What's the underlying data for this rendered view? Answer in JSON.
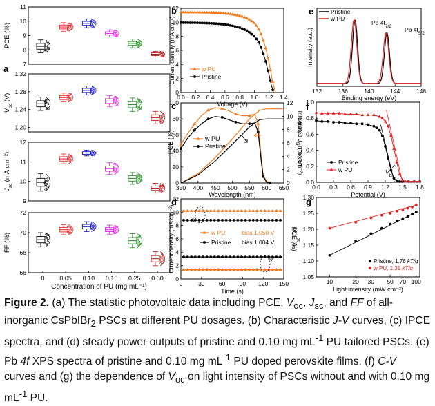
{
  "colors": {
    "black": "#000000",
    "red": "#e02020",
    "blue": "#1515d0",
    "magenta": "#e020e0",
    "green": "#1a8c1a",
    "darkred": "#b01515",
    "orange": "#f07b1e",
    "gray": "#777777"
  },
  "caption": {
    "fig": "Figure 2.",
    "a": "(a) The statistic photovoltaic data including PCE,",
    "voc": "V",
    "voc_sub": "oc",
    "comma1": ",",
    "jsc": "J",
    "jsc_sub": "sc",
    "and": ", and",
    "ff": "FF",
    "a2": "of all-inorganic CsPbIBr",
    "br_sub": "2",
    "a3": "PSCs at different PU dosages. (b) Characteristic",
    "jv": "J-V",
    "b2": "curves, (c) IPCE spectra, and (d) steady power outputs of pristine and 0.10 mg mL",
    "sup1": "-1",
    "b3": "PU tailored PSCs. (e) Pb",
    "pb4f": "4f",
    "b4": "XPS spectra of pristine and 0.10 mg mL",
    "sup2": "-1",
    "b5": "PU doped perovskite films. (f)",
    "cv": "C-V",
    "b6": "curves and (g) the dependence of",
    "voc2": "V",
    "voc2_sub": "oc",
    "b7": "on light intensity of PSCs without and with 0.10 mg mL",
    "sup3": "-1",
    "b8": "PU."
  },
  "chart_data": [
    {
      "panel": "a",
      "type": "box",
      "categories": [
        "0",
        "0.05",
        "0.10",
        "0.15",
        "0.25",
        "0.50"
      ],
      "xlabel": "Concentration of PU (mg mL⁻¹)",
      "colors": [
        "#000000",
        "#e02020",
        "#1515d0",
        "#e020e0",
        "#1a8c1a",
        "#b01515"
      ],
      "subplots": [
        {
          "ylabel": "PCE (%)",
          "ylim": [
            7,
            11
          ],
          "ticks": [
            7,
            8,
            9,
            10,
            11
          ],
          "medians": [
            8.25,
            9.6,
            9.85,
            9.15,
            8.45,
            7.7
          ],
          "spread": [
            0.45,
            0.3,
            0.3,
            0.25,
            0.3,
            0.2
          ]
        },
        {
          "ylabel": "V_oc (V)",
          "ylim": [
            1.19,
            1.32
          ],
          "ticks": [
            1.2,
            1.24,
            1.28,
            1.32
          ],
          "medians": [
            1.253,
            1.267,
            1.283,
            1.259,
            1.251,
            1.222
          ],
          "spread": [
            0.015,
            0.01,
            0.01,
            0.012,
            0.015,
            0.014
          ]
        },
        {
          "ylabel": "J_sc (mA cm⁻²)",
          "ylim": [
            9,
            12
          ],
          "ticks": [
            9,
            10,
            11,
            12
          ],
          "medians": [
            9.95,
            11.15,
            11.45,
            10.65,
            10.15,
            9.65
          ],
          "spread": [
            0.45,
            0.25,
            0.15,
            0.3,
            0.3,
            0.25
          ]
        },
        {
          "ylabel": "FF (%)",
          "ylim": [
            66,
            72
          ],
          "ticks": [
            66,
            68,
            70,
            72
          ],
          "medians": [
            69.3,
            70.3,
            70.6,
            70.3,
            69.2,
            67.4
          ],
          "spread": [
            0.7,
            0.5,
            0.5,
            0.45,
            0.7,
            0.7
          ]
        }
      ]
    },
    {
      "panel": "b",
      "type": "line",
      "xlabel": "Voltage (V)",
      "ylabel": "Current density (mA cm⁻²)",
      "xlim": [
        0,
        1.4
      ],
      "ylim": [
        0,
        12
      ],
      "xticks": [
        0.0,
        0.2,
        0.4,
        0.6,
        0.8,
        1.0,
        1.2,
        1.4
      ],
      "yticks": [
        0,
        2,
        4,
        6,
        8,
        10,
        12
      ],
      "series": [
        {
          "name": "w PU",
          "color": "#f07b1e",
          "x": [
            0,
            0.1,
            0.2,
            0.3,
            0.4,
            0.5,
            0.6,
            0.7,
            0.8,
            0.9,
            1.0,
            1.05,
            1.1,
            1.15,
            1.2,
            1.24,
            1.27,
            1.29
          ],
          "y": [
            11.45,
            11.44,
            11.43,
            11.41,
            11.39,
            11.35,
            11.28,
            11.15,
            10.95,
            10.6,
            9.9,
            9.2,
            8.1,
            6.5,
            4.2,
            2.0,
            0.6,
            0
          ]
        },
        {
          "name": "Pristine",
          "color": "#000000",
          "x": [
            0,
            0.1,
            0.2,
            0.3,
            0.4,
            0.5,
            0.6,
            0.7,
            0.8,
            0.9,
            1.0,
            1.05,
            1.1,
            1.15,
            1.2,
            1.23,
            1.26
          ],
          "y": [
            9.95,
            9.94,
            9.93,
            9.9,
            9.86,
            9.8,
            9.7,
            9.52,
            9.25,
            8.8,
            8.0,
            7.3,
            6.2,
            4.6,
            2.5,
            1.1,
            0
          ]
        }
      ]
    },
    {
      "panel": "c",
      "type": "line",
      "xlabel": "Wavelength (nm)",
      "ylabel": "IPCE (%)",
      "y2label": "Integrated J_sc (mA cm⁻²)",
      "xlim": [
        350,
        650
      ],
      "ylim": [
        0,
        100
      ],
      "y2lim": [
        0,
        12
      ],
      "xticks": [
        350,
        400,
        450,
        500,
        550,
        600,
        650
      ],
      "yticks": [
        0,
        20,
        40,
        60,
        80,
        100
      ],
      "y2ticks": [
        0,
        2,
        4,
        6,
        8,
        10,
        12
      ],
      "series": [
        {
          "name": "w PU",
          "axis": "left",
          "color": "#f07b1e",
          "x": [
            350,
            370,
            390,
            410,
            430,
            450,
            470,
            490,
            510,
            530,
            550,
            565,
            575,
            585,
            590,
            600,
            610
          ],
          "y": [
            48,
            62,
            74,
            84,
            91,
            94,
            93,
            90,
            86,
            84,
            84,
            86,
            74,
            30,
            10,
            2,
            0
          ]
        },
        {
          "name": "Pristine",
          "axis": "left",
          "color": "#000000",
          "x": [
            350,
            370,
            390,
            410,
            430,
            450,
            470,
            490,
            510,
            530,
            550,
            565,
            575,
            585,
            590,
            600,
            610
          ],
          "y": [
            43,
            56,
            66,
            74,
            80,
            83,
            82,
            79,
            76,
            74,
            74,
            75,
            64,
            25,
            8,
            1,
            0
          ]
        },
        {
          "name": "w PU integrated",
          "axis": "right",
          "color": "#f07b1e",
          "x": [
            350,
            400,
            450,
            500,
            550,
            580,
            600,
            650
          ],
          "y": [
            0,
            1.4,
            3.8,
            6.6,
            9.6,
            10.9,
            11.1,
            11.1
          ]
        },
        {
          "name": "Pristine integrated",
          "axis": "right",
          "color": "#000000",
          "x": [
            350,
            400,
            450,
            500,
            550,
            580,
            600,
            650
          ],
          "y": [
            0,
            1.2,
            3.3,
            5.8,
            8.4,
            9.5,
            9.6,
            9.6
          ]
        }
      ]
    },
    {
      "panel": "d",
      "type": "line",
      "xlabel": "Time (s)",
      "ylabel": "Current density (mA cm⁻²)",
      "y2label": "PCE (%)",
      "xlim": [
        0,
        150
      ],
      "ylim": [
        0,
        12
      ],
      "xticks": [
        0,
        30,
        60,
        90,
        120,
        150
      ],
      "yticks": [
        0,
        2,
        4,
        6,
        8,
        10,
        12
      ],
      "series": [
        {
          "name": "w PU",
          "bias": "bias 1.050 V",
          "color": "#f07b1e",
          "current": 10.2,
          "pce": 1.4
        },
        {
          "name": "Pristine",
          "bias": "bias 1.004 V",
          "color": "#000000",
          "current": 8.8,
          "pce": 3.3
        }
      ]
    },
    {
      "panel": "e",
      "type": "line",
      "xlabel": "Binding energy (eV)",
      "ylabel": "Intensity (a.u.)",
      "xlim": [
        132,
        148
      ],
      "xticks": [
        132,
        136,
        140,
        144,
        148
      ],
      "peaks": [
        {
          "label": "Pb 4f",
          "sub": "7/2",
          "x": 137.8
        },
        {
          "label": "Pb 4f",
          "sub": "5/2",
          "x": 142.7
        }
      ],
      "series": [
        {
          "name": "Pristine",
          "color": "#000000",
          "centers": [
            137.85,
            142.75
          ],
          "heights": [
            0.88,
            0.7
          ],
          "width": 0.55
        },
        {
          "name": "w PU",
          "color": "#e02020",
          "centers": [
            137.7,
            142.6
          ],
          "heights": [
            0.88,
            0.7
          ],
          "width": 0.6
        }
      ]
    },
    {
      "panel": "f",
      "type": "scatter-line",
      "xlabel": "Potential (V)",
      "ylabel": "1/C² (10¹⁴ F⁻² cm⁴)",
      "xlim": [
        0,
        1.8
      ],
      "ylim": [
        0,
        1.0
      ],
      "xticks": [
        0.0,
        0.3,
        0.6,
        0.9,
        1.2,
        1.5,
        1.8
      ],
      "yticks": [
        0.0,
        0.2,
        0.4,
        0.6,
        0.8,
        1.0
      ],
      "annotation": "V_bi",
      "series": [
        {
          "name": "Pristine",
          "color": "#000000",
          "x": [
            0.0,
            0.1,
            0.2,
            0.3,
            0.4,
            0.5,
            0.6,
            0.7,
            0.8,
            0.9,
            1.0,
            1.05,
            1.1,
            1.15,
            1.2,
            1.25,
            1.3,
            1.35,
            1.4,
            1.45,
            1.5,
            1.6,
            1.7,
            1.8
          ],
          "y": [
            0.77,
            0.76,
            0.76,
            0.75,
            0.75,
            0.74,
            0.74,
            0.73,
            0.73,
            0.72,
            0.7,
            0.68,
            0.65,
            0.58,
            0.45,
            0.3,
            0.15,
            0.05,
            0.02,
            0.01,
            0.01,
            0.01,
            0.01,
            0.01
          ]
        },
        {
          "name": "w PU",
          "color": "#e02020",
          "x": [
            0.0,
            0.1,
            0.2,
            0.3,
            0.4,
            0.5,
            0.6,
            0.7,
            0.8,
            0.9,
            1.0,
            1.1,
            1.15,
            1.2,
            1.25,
            1.3,
            1.35,
            1.4,
            1.45,
            1.5,
            1.55,
            1.6,
            1.7,
            1.8
          ],
          "y": [
            0.87,
            0.86,
            0.86,
            0.86,
            0.86,
            0.85,
            0.85,
            0.85,
            0.84,
            0.84,
            0.84,
            0.82,
            0.8,
            0.76,
            0.7,
            0.58,
            0.42,
            0.25,
            0.1,
            0.03,
            0.01,
            0.01,
            0.01,
            0.01
          ]
        }
      ]
    },
    {
      "panel": "g",
      "type": "scatter",
      "xlabel": "Light intensity (mW cm⁻²)",
      "ylabel": "V_oc (V)",
      "xscale": "log",
      "xlim": [
        7,
        110
      ],
      "ylim": [
        1.05,
        1.3
      ],
      "xticks": [
        10,
        20,
        30,
        50,
        70,
        100
      ],
      "yticks": [
        1.05,
        1.1,
        1.15,
        1.2,
        1.25,
        1.3
      ],
      "series": [
        {
          "name": "Pristine, 1.76 kT/q",
          "color": "#000000",
          "x": [
            10,
            20,
            30,
            40,
            50,
            60,
            70,
            80,
            90,
            100
          ],
          "y": [
            1.118,
            1.163,
            1.186,
            1.203,
            1.216,
            1.226,
            1.234,
            1.241,
            1.248,
            1.254
          ]
        },
        {
          "name": "w PU, 1.31 kT/q",
          "color": "#e02020",
          "x": [
            10,
            20,
            30,
            40,
            50,
            60,
            70,
            80,
            90,
            100
          ],
          "y": [
            1.203,
            1.222,
            1.236,
            1.244,
            1.25,
            1.257,
            1.261,
            1.266,
            1.27,
            1.276
          ]
        }
      ]
    }
  ],
  "labels": {
    "a": "a",
    "b": "b",
    "c": "c",
    "d": "d",
    "e": "e",
    "f": "f",
    "g": "g",
    "a_ylabels": [
      "PCE (%)",
      "V",
      "J",
      "FF (%)"
    ],
    "a_ysubs": [
      "",
      "oc",
      "sc",
      ""
    ],
    "a_yunits": [
      "",
      " (V)",
      " (mA cm⁻²)",
      ""
    ],
    "a_xlabel": "Concentration of PU (mg mL⁻¹)",
    "b_legend": [
      "w PU",
      "Pristine"
    ],
    "c_legend": [
      "w PU",
      "Pristine"
    ],
    "d_legend": [
      "w PU",
      "Pristine"
    ],
    "d_bias": [
      "bias 1.050 V",
      "bias 1.004 V"
    ],
    "e_legend": [
      "Pristine",
      "w PU"
    ],
    "e_peaks": [
      "Pb 4f",
      "Pb 4f"
    ],
    "e_peak_subs": [
      "7/2",
      "5/2"
    ],
    "f_legend": [
      "Pristine",
      "w PU"
    ],
    "f_vbi": "V",
    "f_vbi_sub": "bi",
    "g_legend": [
      "Pristine, 1.76 ",
      "w PU, 1.31 "
    ],
    "g_kt": "kT/q",
    "ylabel_b": "Current density (mA cm⁻²)",
    "ylabel_c": "IPCE (%)",
    "y2label_c": "Integrated J",
    "y2label_c_sub": "sc",
    "y2label_c_unit": " (mA cm⁻²)",
    "ylabel_d": "Current density (mA cm⁻²)",
    "y2label_d": "PCE (%)",
    "ylabel_e": "Intensity (a.u.)",
    "ylabel_f": "1/C² (10¹⁴ F⁻² cm⁴)",
    "ylabel_g": "V",
    "ylabel_g_sub": "oc",
    "ylabel_g_unit": " (V)",
    "xlabel_b": "Voltage (V)",
    "xlabel_c": "Wavelength (nm)",
    "xlabel_d": "Time (s)",
    "xlabel_e": "Binding energy (eV)",
    "xlabel_f": "Potential (V)",
    "xlabel_g": "Light intensity (mW cm⁻²)"
  }
}
